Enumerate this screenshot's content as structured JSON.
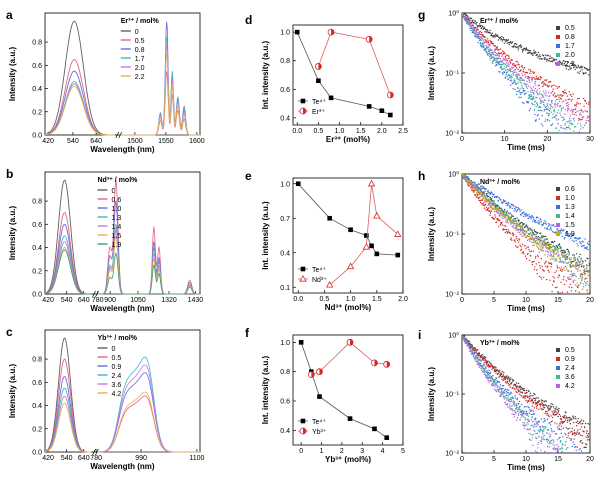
{
  "panel_letters": [
    "a",
    "b",
    "c",
    "d",
    "e",
    "f",
    "g",
    "h",
    "i"
  ],
  "chart_data": [
    {
      "id": "a",
      "type": "line",
      "ylabel": "Intensity (a.u.)",
      "xlabel": "Wavelength (nm)",
      "legend_title": "Er³⁺ / mol%",
      "xticks": [
        "420",
        "540",
        "640",
        "1500",
        "1550",
        "1600"
      ],
      "yticks": [
        "0.0",
        "0.2",
        "0.4",
        "0.6",
        "0.8"
      ],
      "ylim": [
        0,
        1.05
      ],
      "series": [
        {
          "name": "0",
          "color": "#606060",
          "visible_peak": 0.98,
          "nir": [
            0,
            0
          ]
        },
        {
          "name": "0.5",
          "color": "#e8637a",
          "visible_peak": 0.65,
          "nir": [
            0.55,
            0.35
          ]
        },
        {
          "name": "0.8",
          "color": "#6d6ae0",
          "visible_peak": 0.55,
          "nir": [
            0.98,
            0.52
          ]
        },
        {
          "name": "1.7",
          "color": "#3fb8c0",
          "visible_peak": 0.46,
          "nir": [
            0.85,
            0.55
          ]
        },
        {
          "name": "2.0",
          "color": "#c77be0",
          "visible_peak": 0.44,
          "nir": [
            0.78,
            0.48
          ]
        },
        {
          "name": "2.2",
          "color": "#e0b54a",
          "visible_peak": 0.42,
          "nir": [
            0.7,
            0.42
          ]
        }
      ]
    },
    {
      "id": "b",
      "type": "line",
      "ylabel": "Intensity (a.u.)",
      "xlabel": "Wavelength (nm)",
      "legend_title": "Nd³⁺ / mol%",
      "xticks": [
        "420",
        "540",
        "640",
        "780",
        "900",
        "1050",
        "1320",
        "1430"
      ],
      "yticks": [
        "0.0",
        "0.2",
        "0.4",
        "0.6",
        "0.8"
      ],
      "ylim": [
        0,
        1.05
      ],
      "series": [
        {
          "name": "0",
          "color": "#606060",
          "visible_peak": 0.98,
          "nir": [
            0,
            0,
            0
          ]
        },
        {
          "name": "0.6",
          "color": "#e8637a",
          "visible_peak": 0.7,
          "nir": [
            0.98,
            0.58,
            0.12
          ]
        },
        {
          "name": "1.0",
          "color": "#6d6ae0",
          "visible_peak": 0.6,
          "nir": [
            0.8,
            0.45,
            0.1
          ]
        },
        {
          "name": "1.3",
          "color": "#3fb8c0",
          "visible_peak": 0.5,
          "nir": [
            0.6,
            0.4,
            0.08
          ]
        },
        {
          "name": "1.4",
          "color": "#c77be0",
          "visible_peak": 0.45,
          "nir": [
            0.55,
            0.35,
            0.08
          ]
        },
        {
          "name": "1.5",
          "color": "#e0b54a",
          "visible_peak": 0.4,
          "nir": [
            0.5,
            0.3,
            0.07
          ]
        },
        {
          "name": "1.9",
          "color": "#3fa06a",
          "visible_peak": 0.38,
          "nir": [
            0.35,
            0.25,
            0.06
          ]
        }
      ]
    },
    {
      "id": "c",
      "type": "line",
      "ylabel": "Intensity (a.u.)",
      "xlabel": "Wavelength (nm)",
      "legend_title": "Yb³⁺ / mol%",
      "xticks": [
        "420",
        "540",
        "640",
        "780",
        "990",
        "1100"
      ],
      "yticks": [
        "0.0",
        "0.2",
        "0.4",
        "0.6",
        "0.8"
      ],
      "ylim": [
        0,
        1.05
      ],
      "series": [
        {
          "name": "0",
          "color": "#606060",
          "visible_peak": 0.98,
          "nir": 0
        },
        {
          "name": "0.5",
          "color": "#e8637a",
          "visible_peak": 0.8,
          "nir": 0.58
        },
        {
          "name": "0.9",
          "color": "#6d6ae0",
          "visible_peak": 0.65,
          "nir": 0.82
        },
        {
          "name": "2.4",
          "color": "#3fb8c0",
          "visible_peak": 0.55,
          "nir": 0.98
        },
        {
          "name": "3.6",
          "color": "#c77be0",
          "visible_peak": 0.48,
          "nir": 0.9
        },
        {
          "name": "4.2",
          "color": "#e0b54a",
          "visible_peak": 0.42,
          "nir": 0.62
        }
      ]
    },
    {
      "id": "d",
      "type": "line",
      "ylabel": "Int. intensity (a.u.)",
      "xlabel": "Er³⁺ (mol%)",
      "xlim": [
        -0.1,
        2.5
      ],
      "ylim": [
        0.35,
        1.05
      ],
      "xticks": [
        "0.0",
        "0.5",
        "1.0",
        "1.5",
        "2.0",
        "2.5"
      ],
      "yticks": [
        "0.4",
        "0.6",
        "0.8",
        "1.0"
      ],
      "series": [
        {
          "name": "Te⁴⁺",
          "color": "#000000",
          "marker": "square",
          "x": [
            0,
            0.5,
            0.8,
            1.7,
            2.0,
            2.2
          ],
          "y": [
            1.0,
            0.66,
            0.54,
            0.48,
            0.45,
            0.42
          ]
        },
        {
          "name": "Er³⁺",
          "color": "#d22b2b",
          "marker": "circle",
          "x": [
            0.5,
            0.8,
            1.7,
            2.2
          ],
          "y": [
            0.76,
            1.0,
            0.95,
            0.56
          ]
        }
      ]
    },
    {
      "id": "e",
      "type": "line",
      "ylabel": "Int. intensity (a.u.)",
      "xlabel": "Nd³⁺ (mol%)",
      "xlim": [
        -0.1,
        2.0
      ],
      "ylim": [
        0.05,
        1.05
      ],
      "xticks": [
        "0.0",
        "0.5",
        "1.0",
        "1.5",
        "2.0"
      ],
      "yticks": [
        "0.1",
        "0.4",
        "0.7",
        "1.0"
      ],
      "series": [
        {
          "name": "Te⁴⁺",
          "color": "#000000",
          "marker": "square",
          "x": [
            0,
            0.6,
            1.0,
            1.3,
            1.4,
            1.5,
            1.9
          ],
          "y": [
            1.0,
            0.7,
            0.6,
            0.55,
            0.46,
            0.39,
            0.38
          ]
        },
        {
          "name": "Nd³⁺",
          "color": "#d22b2b",
          "marker": "triangle",
          "x": [
            0.6,
            1.0,
            1.3,
            1.4,
            1.5,
            1.9
          ],
          "y": [
            0.12,
            0.28,
            0.45,
            1.0,
            0.72,
            0.56
          ]
        }
      ]
    },
    {
      "id": "f",
      "type": "line",
      "ylabel": "Int. intensity (a.u.)",
      "xlabel": "Yb³⁺ (mol%)",
      "xlim": [
        -0.4,
        5.0
      ],
      "ylim": [
        0.3,
        1.05
      ],
      "xticks": [
        "0",
        "1",
        "2",
        "3",
        "4",
        "5"
      ],
      "yticks": [
        "0.4",
        "0.6",
        "0.8",
        "1.0"
      ],
      "series": [
        {
          "name": "Te⁴⁺",
          "color": "#000000",
          "marker": "square",
          "x": [
            0,
            0.5,
            0.9,
            2.4,
            3.6,
            4.2
          ],
          "y": [
            1.0,
            0.8,
            0.63,
            0.48,
            0.41,
            0.35
          ]
        },
        {
          "name": "Yb³⁺",
          "color": "#d22b2b",
          "marker": "circle",
          "x": [
            0.5,
            0.9,
            2.4,
            3.6,
            4.2
          ],
          "y": [
            0.78,
            0.8,
            1.0,
            0.86,
            0.85
          ]
        }
      ]
    },
    {
      "id": "g",
      "type": "scatter",
      "yscale": "log",
      "ylabel": "Intensity (a.u.)",
      "xlabel": "Time (ms)",
      "legend_title": "Er³⁺ / mol%",
      "xlim": [
        0,
        30
      ],
      "ylim": [
        0.01,
        1
      ],
      "xticks": [
        "0",
        "10",
        "20",
        "30"
      ],
      "yticks": [
        "10⁻²",
        "10⁻¹",
        "10⁰"
      ],
      "series": [
        {
          "name": "0.5",
          "color": "#404040",
          "tau": [
            5.0,
            20.0
          ]
        },
        {
          "name": "0.8",
          "color": "#d22b2b",
          "tau": [
            3.5,
            10.0
          ]
        },
        {
          "name": "1.7",
          "color": "#3b6fd8",
          "tau": [
            2.5,
            6.0
          ]
        },
        {
          "name": "2.0",
          "color": "#3fb89a",
          "tau": [
            2.8,
            7.0
          ]
        },
        {
          "name": "2.2",
          "color": "#b066d8",
          "tau": [
            3.0,
            8.0
          ]
        }
      ]
    },
    {
      "id": "h",
      "type": "scatter",
      "yscale": "log",
      "ylabel": "Intensity (a.u.)",
      "xlabel": "Time (ms)",
      "legend_title": "Nd³⁺ / mol%",
      "xlim": [
        0,
        20
      ],
      "ylim": [
        0.01,
        1
      ],
      "xticks": [
        "0",
        "5",
        "10",
        "15",
        "20"
      ],
      "yticks": [
        "10⁻²",
        "10⁻¹",
        "10⁰"
      ],
      "series": [
        {
          "name": "0.6",
          "color": "#404040",
          "tau": [
            3.0,
            7.0
          ]
        },
        {
          "name": "1.0",
          "color": "#d22b2b",
          "tau": [
            2.0,
            4.5
          ]
        },
        {
          "name": "1.3",
          "color": "#3b6fd8",
          "tau": [
            4.0,
            10.0
          ]
        },
        {
          "name": "1.4",
          "color": "#3fb89a",
          "tau": [
            2.8,
            6.5
          ]
        },
        {
          "name": "1.5",
          "color": "#b066d8",
          "tau": [
            2.5,
            6.0
          ]
        },
        {
          "name": "1.9",
          "color": "#c8a818",
          "tau": [
            2.6,
            6.2
          ]
        }
      ]
    },
    {
      "id": "i",
      "type": "scatter",
      "yscale": "log",
      "ylabel": "Intensity (a.u.)",
      "xlabel": "Time (ms)",
      "legend_title": "Yb³⁺ / mol%",
      "xlim": [
        0,
        20
      ],
      "ylim": [
        0.01,
        1
      ],
      "xticks": [
        "0",
        "5",
        "10",
        "15",
        "20"
      ],
      "yticks": [
        "10⁻²",
        "10⁻¹",
        "10⁰"
      ],
      "series": [
        {
          "name": "0.5",
          "color": "#404040",
          "tau": [
            2.5,
            6.5
          ]
        },
        {
          "name": "0.9",
          "color": "#d22b2b",
          "tau": [
            2.3,
            6.0
          ]
        },
        {
          "name": "2.4",
          "color": "#3b6fd8",
          "tau": [
            1.8,
            4.5
          ]
        },
        {
          "name": "3.6",
          "color": "#3fb89a",
          "tau": [
            1.6,
            4.0
          ]
        },
        {
          "name": "4.2",
          "color": "#b066d8",
          "tau": [
            1.5,
            3.8
          ]
        }
      ]
    }
  ]
}
